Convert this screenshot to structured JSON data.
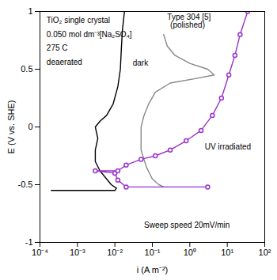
{
  "chart_data": {
    "type": "line",
    "log": "x",
    "grid": false,
    "x_label": "i (A m⁻²)",
    "y_label": "E (V vs. SHE)",
    "xlim": [
      0.0001,
      100
    ],
    "ylim": [
      -1,
      1
    ],
    "xticks": [
      {
        "value": 0.0001,
        "label": "10⁻⁴"
      },
      {
        "value": 0.001,
        "label": "10⁻³"
      },
      {
        "value": 0.01,
        "label": "10⁻²"
      },
      {
        "value": 0.1,
        "label": "10⁻¹"
      },
      {
        "value": 1,
        "label": "10⁰"
      },
      {
        "value": 10,
        "label": "10¹"
      },
      {
        "value": 100,
        "label": "10²"
      }
    ],
    "yticks": [
      -1,
      -0.5,
      0,
      0.5,
      1
    ],
    "series": [
      {
        "name": "dark",
        "color": "#000000",
        "marker": "none",
        "x": [
          0.0002,
          0.01,
          0.011,
          0.008,
          0.006,
          0.004,
          0.003,
          0.003,
          0.0035,
          0.003,
          0.004,
          0.006,
          0.009,
          0.012,
          0.014,
          0.015,
          0.016,
          0.018
        ],
        "values": [
          -0.55,
          -0.55,
          -0.53,
          -0.5,
          -0.45,
          -0.38,
          -0.3,
          -0.2,
          -0.1,
          0,
          0.05,
          0.1,
          0.2,
          0.35,
          0.5,
          0.7,
          0.85,
          1.0
        ]
      },
      {
        "name": "Type 304 [5] (polished)",
        "color": "#888888",
        "marker": "none",
        "x": [
          0.2,
          0.15,
          0.1,
          0.07,
          0.05,
          0.05,
          0.06,
          0.08,
          0.12,
          0.3,
          1.5,
          4.5,
          3,
          1,
          0.4,
          0.25,
          0.2
        ],
        "values": [
          -0.52,
          -0.5,
          -0.45,
          -0.35,
          -0.2,
          0,
          0.1,
          0.2,
          0.3,
          0.38,
          0.42,
          0.45,
          0.5,
          0.55,
          0.62,
          0.7,
          0.8
        ]
      },
      {
        "name": "UV irradiated",
        "color": "#9933cc",
        "marker": "circle",
        "x": [
          3,
          0.02,
          0.012,
          0.01,
          0.003,
          0.012,
          0.02,
          0.05,
          0.12,
          0.3,
          0.8,
          2,
          4,
          7,
          11,
          16,
          22,
          35
        ],
        "values": [
          -0.52,
          -0.52,
          -0.46,
          -0.4,
          -0.38,
          -0.38,
          -0.33,
          -0.28,
          -0.25,
          -0.2,
          -0.12,
          -0.03,
          0.1,
          0.25,
          0.45,
          0.62,
          0.8,
          1.0
        ]
      }
    ],
    "annotations": [
      {
        "text": "TiO₂ single crystal",
        "x": 0.00015,
        "y": 0.92
      },
      {
        "text": "0.050 mol dm⁻³[Na₂SO₄]",
        "x": 0.00015,
        "y": 0.8
      },
      {
        "text": "275 C",
        "x": 0.00015,
        "y": 0.68
      },
      {
        "text": "deaerated",
        "x": 0.00015,
        "y": 0.56
      },
      {
        "text": "dark",
        "x": 0.03,
        "y": 0.55
      },
      {
        "text": "Type 304 [5]",
        "x": 0.25,
        "y": 0.95
      },
      {
        "text": "(polished)",
        "x": 0.3,
        "y": 0.88
      },
      {
        "text": "UV irradiated",
        "x": 2.5,
        "y": -0.17
      },
      {
        "text": "Sweep speed 20mV/min",
        "x": 0.06,
        "y": -0.85
      }
    ]
  }
}
